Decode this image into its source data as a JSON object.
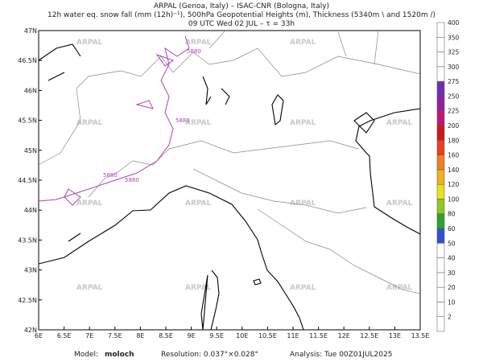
{
  "header": {
    "line1": "ARPAL (Genoa, Italy)  –  ISAC-CNR (Bologna, Italy)",
    "line2": "12h water eq. snow fall (mm (12h)⁻¹), 500hPa Geopotential Heights (m), Thickness (5340m \\ and 1520m /)",
    "line3": "09 UTC Wed 02 JUL  –  τ = 33h"
  },
  "map": {
    "lon_labels": [
      "6E",
      "6.5E",
      "7E",
      "7.5E",
      "8E",
      "8.5E",
      "9E",
      "9.5E",
      "10E",
      "10.5E",
      "11E",
      "11.5E",
      "12E",
      "12.5E",
      "13E",
      "13.5E"
    ],
    "lat_labels": [
      "42N",
      "42.5N",
      "43N",
      "43.5N",
      "44N",
      "44.5N",
      "45N",
      "45.5N",
      "46N",
      "46.5N",
      "47N"
    ],
    "contour_labels": [
      "5880",
      "5880",
      "5880",
      "5880"
    ],
    "watermark": "ARPAL"
  },
  "colorbar": [
    {
      "label": "2",
      "color": "#ffffff"
    },
    {
      "label": "10",
      "color": "#ffffff"
    },
    {
      "label": "20",
      "color": "#ffffff"
    },
    {
      "label": "30",
      "color": "#ffffff"
    },
    {
      "label": "40",
      "color": "#ffffff"
    },
    {
      "label": "50",
      "color": "#ffffff"
    },
    {
      "label": "60",
      "color": "#3050d0"
    },
    {
      "label": "80",
      "color": "#30a030"
    },
    {
      "label": "100",
      "color": "#90c820"
    },
    {
      "label": "120",
      "color": "#e8e020"
    },
    {
      "label": "140",
      "color": "#f0b020"
    },
    {
      "label": "160",
      "color": "#f08020"
    },
    {
      "label": "180",
      "color": "#e84020"
    },
    {
      "label": "200",
      "color": "#d01818"
    },
    {
      "label": "225",
      "color": "#c01870"
    },
    {
      "label": "250",
      "color": "#9020a0"
    },
    {
      "label": "275",
      "color": "#7030b0"
    },
    {
      "label": "300",
      "color": "#ffffff"
    },
    {
      "label": "325",
      "color": "#ffffff"
    },
    {
      "label": "350",
      "color": "#ffffff"
    },
    {
      "label": "400",
      "color": "#ffffff"
    }
  ],
  "footer": {
    "model_label": "Model:",
    "model": "moloch",
    "resolution": "Resolution: 0.037°×0.028°",
    "analysis": "Analysis: Tue 00Z01JUL2025"
  }
}
